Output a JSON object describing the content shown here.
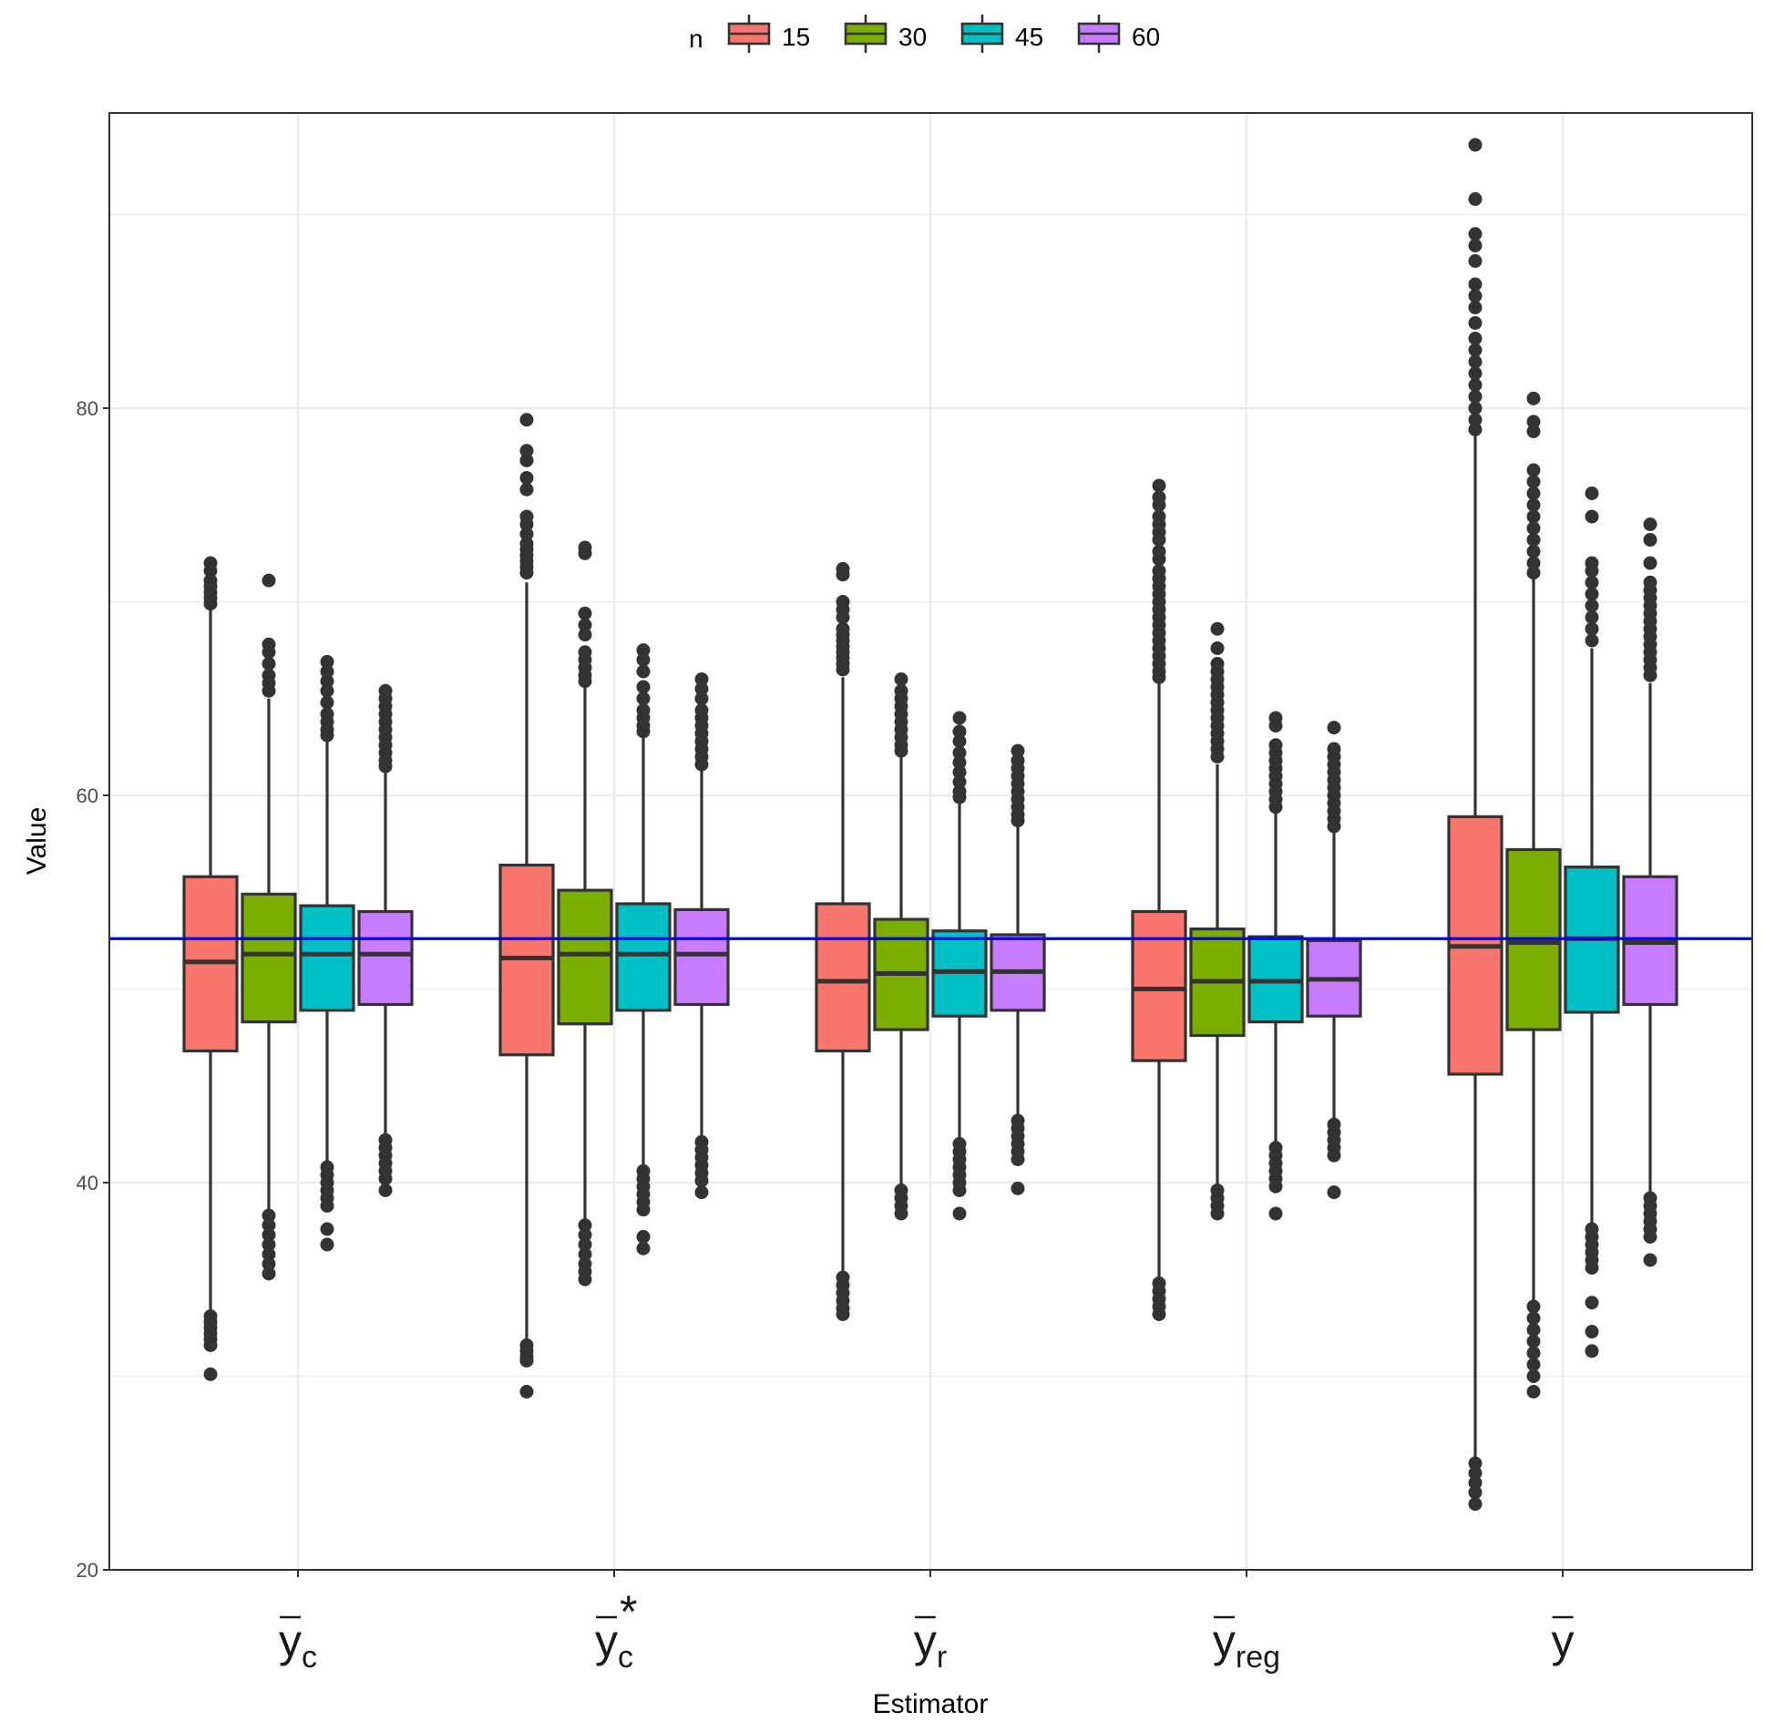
{
  "chart_data": {
    "type": "boxplot",
    "xlabel": "Estimator",
    "ylabel": "Value",
    "ylim": [
      20,
      97
    ],
    "yticks": [
      20,
      40,
      60,
      80
    ],
    "reference_line": {
      "value": 52.6,
      "color": "#0000ff"
    },
    "legend": {
      "title": "n",
      "position": "top"
    },
    "categories": [
      {
        "base": "y",
        "sub": "c",
        "sup": ""
      },
      {
        "base": "y",
        "sub": "c",
        "sup": "*"
      },
      {
        "base": "y",
        "sub": "r",
        "sup": ""
      },
      {
        "base": "y",
        "sub": "reg",
        "sup": ""
      },
      {
        "base": "y",
        "sub": "",
        "sup": ""
      }
    ],
    "series": [
      {
        "name": "15",
        "color": "#f8766d",
        "boxes": [
          {
            "q1": 46.8,
            "median": 51.4,
            "q3": 55.8,
            "whisker_low": 33.3,
            "whisker_high": 69.6,
            "outliers": [
              72.0,
              71.6,
              71.1,
              70.8,
              70.5,
              70.2,
              69.9,
              33.1,
              32.8,
              32.5,
              32.2,
              31.9,
              31.6,
              30.1
            ]
          },
          {
            "q1": 46.6,
            "median": 51.6,
            "q3": 56.4,
            "whisker_low": 31.8,
            "whisker_high": 71.0,
            "outliers": [
              79.4,
              77.8,
              77.3,
              76.4,
              75.8,
              74.4,
              74.0,
              73.5,
              73.0,
              72.7,
              72.4,
              72.1,
              71.8,
              71.5,
              31.6,
              31.3,
              31.0,
              30.8,
              29.2
            ]
          },
          {
            "q1": 46.8,
            "median": 50.4,
            "q3": 54.4,
            "whisker_low": 35.2,
            "whisker_high": 66.1,
            "outliers": [
              71.7,
              71.4,
              70.0,
              69.6,
              69.2,
              68.6,
              68.3,
              68.0,
              67.7,
              67.4,
              67.1,
              66.8,
              66.5,
              35.1,
              34.7,
              34.3,
              33.9,
              33.5,
              33.2
            ]
          },
          {
            "q1": 46.3,
            "median": 50.0,
            "q3": 54.0,
            "whisker_low": 35.0,
            "whisker_high": 65.8,
            "outliers": [
              76.0,
              75.4,
              75.0,
              74.4,
              74.0,
              73.6,
              73.2,
              72.6,
              72.2,
              71.6,
              71.2,
              70.8,
              70.4,
              70.0,
              69.6,
              69.2,
              68.8,
              68.4,
              68.0,
              67.6,
              67.2,
              66.8,
              66.4,
              66.1,
              34.8,
              34.4,
              34.0,
              33.6,
              33.2
            ]
          },
          {
            "q1": 45.6,
            "median": 52.2,
            "q3": 58.9,
            "whisker_low": 25.6,
            "whisker_high": 78.6,
            "outliers": [
              93.6,
              90.8,
              89.0,
              88.4,
              87.6,
              86.4,
              85.8,
              85.2,
              84.4,
              83.6,
              83.0,
              82.4,
              81.8,
              81.2,
              80.6,
              80.0,
              79.4,
              78.9,
              25.5,
              25.0,
              24.5,
              24.0,
              23.4
            ]
          }
        ]
      },
      {
        "name": "30",
        "color": "#7cae00",
        "boxes": [
          {
            "q1": 48.3,
            "median": 51.8,
            "q3": 54.9,
            "whisker_low": 38.5,
            "whisker_high": 65.0,
            "outliers": [
              71.1,
              67.8,
              67.4,
              66.8,
              66.2,
              65.8,
              65.4,
              38.3,
              37.8,
              37.3,
              36.8,
              36.3,
              35.8,
              35.3
            ]
          },
          {
            "q1": 48.2,
            "median": 51.8,
            "q3": 55.1,
            "whisker_low": 38.0,
            "whisker_high": 65.6,
            "outliers": [
              72.8,
              72.5,
              69.4,
              68.8,
              68.3,
              67.4,
              67.0,
              66.6,
              66.2,
              65.9,
              37.8,
              37.3,
              36.8,
              36.3,
              35.8,
              35.4,
              35.0
            ]
          },
          {
            "q1": 47.9,
            "median": 50.8,
            "q3": 53.6,
            "whisker_low": 39.8,
            "whisker_high": 62.1,
            "outliers": [
              66.0,
              65.4,
              65.0,
              64.6,
              64.2,
              63.8,
              63.4,
              63.0,
              62.6,
              62.3,
              39.6,
              39.2,
              38.8,
              38.4
            ]
          },
          {
            "q1": 47.6,
            "median": 50.4,
            "q3": 53.1,
            "whisker_low": 39.8,
            "whisker_high": 61.6,
            "outliers": [
              68.6,
              67.6,
              66.8,
              66.4,
              66.0,
              65.6,
              65.2,
              64.8,
              64.4,
              64.0,
              63.6,
              63.2,
              62.8,
              62.4,
              62.0,
              39.6,
              39.2,
              38.8,
              38.4
            ]
          },
          {
            "q1": 47.9,
            "median": 52.4,
            "q3": 57.2,
            "whisker_low": 33.7,
            "whisker_high": 71.2,
            "outliers": [
              80.5,
              79.3,
              78.8,
              76.8,
              76.2,
              75.6,
              75.0,
              74.4,
              73.8,
              73.2,
              72.6,
              72.0,
              71.5,
              33.6,
              33.0,
              32.4,
              31.8,
              31.2,
              30.6,
              30.0,
              29.2
            ]
          }
        ]
      },
      {
        "name": "45",
        "color": "#00bfc4",
        "boxes": [
          {
            "q1": 48.9,
            "median": 51.8,
            "q3": 54.3,
            "whisker_low": 41.0,
            "whisker_high": 62.8,
            "outliers": [
              66.9,
              66.4,
              65.9,
              65.4,
              64.8,
              64.2,
              63.8,
              63.4,
              63.1,
              40.8,
              40.4,
              40.0,
              39.6,
              39.2,
              38.8,
              37.6,
              36.8
            ]
          },
          {
            "q1": 48.9,
            "median": 51.8,
            "q3": 54.4,
            "whisker_low": 40.8,
            "whisker_high": 63.0,
            "outliers": [
              67.5,
              67.0,
              66.4,
              65.6,
              65.0,
              64.4,
              64.0,
              63.6,
              63.3,
              40.6,
              40.2,
              39.8,
              39.4,
              39.0,
              38.6,
              37.2,
              36.6
            ]
          },
          {
            "q1": 48.6,
            "median": 50.9,
            "q3": 53.0,
            "whisker_low": 42.2,
            "whisker_high": 59.7,
            "outliers": [
              64.0,
              63.3,
              62.8,
              62.2,
              61.7,
              61.2,
              60.7,
              60.2,
              59.9,
              42.0,
              41.6,
              41.2,
              40.8,
              40.4,
              40.0,
              39.6,
              38.4
            ]
          },
          {
            "q1": 48.3,
            "median": 50.4,
            "q3": 52.7,
            "whisker_low": 42.0,
            "whisker_high": 59.2,
            "outliers": [
              64.0,
              63.6,
              62.6,
              62.2,
              61.8,
              61.4,
              61.0,
              60.6,
              60.2,
              59.8,
              59.4,
              41.8,
              41.4,
              41.0,
              40.6,
              40.2,
              39.8,
              38.4
            ]
          },
          {
            "q1": 48.8,
            "median": 52.6,
            "q3": 56.3,
            "whisker_low": 37.8,
            "whisker_high": 67.6,
            "outliers": [
              75.6,
              74.4,
              72.0,
              71.6,
              71.0,
              70.4,
              69.8,
              69.2,
              68.6,
              68.0,
              37.6,
              37.2,
              36.8,
              36.4,
              36.0,
              35.6,
              33.8,
              32.3,
              31.3
            ]
          }
        ]
      },
      {
        "name": "60",
        "color": "#c77cff",
        "boxes": [
          {
            "q1": 49.2,
            "median": 51.8,
            "q3": 54.0,
            "whisker_low": 42.4,
            "whisker_high": 61.3,
            "outliers": [
              65.4,
              65.0,
              64.6,
              64.2,
              63.8,
              63.4,
              63.0,
              62.6,
              62.2,
              61.8,
              61.5,
              42.2,
              41.8,
              41.4,
              41.0,
              40.6,
              40.2,
              39.6
            ]
          },
          {
            "q1": 49.2,
            "median": 51.8,
            "q3": 54.1,
            "whisker_low": 42.3,
            "whisker_high": 61.4,
            "outliers": [
              66.0,
              65.5,
              65.0,
              64.4,
              64.0,
              63.6,
              63.2,
              62.8,
              62.4,
              62.0,
              61.6,
              42.1,
              41.7,
              41.3,
              40.9,
              40.5,
              40.1,
              39.5
            ]
          },
          {
            "q1": 48.9,
            "median": 50.9,
            "q3": 52.8,
            "whisker_low": 43.4,
            "whisker_high": 58.6,
            "outliers": [
              62.3,
              61.8,
              61.4,
              61.0,
              60.6,
              60.2,
              59.8,
              59.4,
              59.0,
              58.7,
              43.2,
              42.8,
              42.4,
              42.0,
              41.6,
              41.2,
              39.7
            ]
          },
          {
            "q1": 48.6,
            "median": 50.5,
            "q3": 52.5,
            "whisker_low": 43.2,
            "whisker_high": 58.1,
            "outliers": [
              63.5,
              62.4,
              62.0,
              61.6,
              61.2,
              60.8,
              60.4,
              60.0,
              59.6,
              59.2,
              58.8,
              58.4,
              43.0,
              42.6,
              42.2,
              41.8,
              41.4,
              39.5
            ]
          },
          {
            "q1": 49.2,
            "median": 52.4,
            "q3": 55.8,
            "whisker_low": 39.4,
            "whisker_high": 65.8,
            "outliers": [
              74.0,
              73.2,
              72.0,
              71.0,
              70.6,
              70.2,
              69.8,
              69.4,
              69.0,
              68.6,
              68.2,
              67.8,
              67.4,
              67.0,
              66.6,
              66.2,
              39.2,
              38.8,
              38.4,
              38.0,
              37.6,
              37.2,
              36.0
            ]
          }
        ]
      }
    ]
  }
}
